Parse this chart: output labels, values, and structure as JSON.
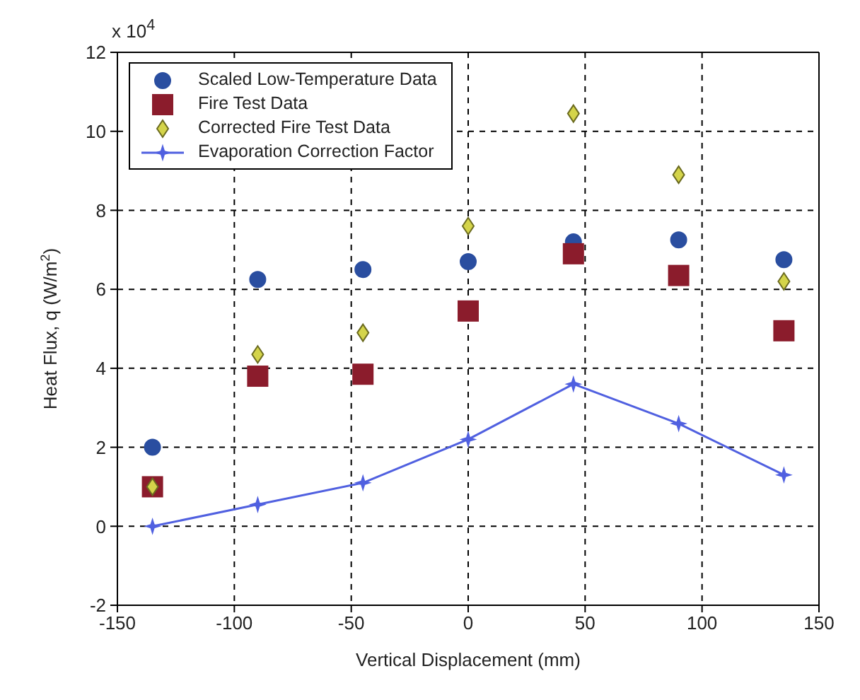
{
  "chart_data": {
    "type": "scatter",
    "xlabel": "Vertical Displacement (mm)",
    "ylabel": "Heat Flux, q (W/m$^{2}$)",
    "annotations": [
      "x 10$^{4}$"
    ],
    "x": [
      -135,
      -90,
      -45,
      0,
      45,
      90,
      135
    ],
    "series": [
      {
        "name": "Scaled Low-Temperature Data",
        "color": "#2a4ea0",
        "marker": "circle",
        "values": [
          2.0,
          6.25,
          6.5,
          6.7,
          7.2,
          7.25,
          6.75
        ]
      },
      {
        "name": "Fire Test Data",
        "color": "#8b1c2c",
        "marker": "square",
        "values": [
          1.0,
          3.8,
          3.85,
          5.45,
          6.9,
          6.35,
          4.95
        ]
      },
      {
        "name": "Corrected Fire Test Data",
        "color": "#d4d44a",
        "marker": "diamond",
        "values": [
          1.0,
          4.35,
          4.9,
          7.6,
          10.45,
          8.9,
          6.2
        ]
      },
      {
        "name": "Evaporation Correction Factor",
        "color": "#5060e0",
        "type": "line",
        "marker": "star",
        "values": [
          0,
          0.55,
          1.1,
          2.2,
          3.6,
          2.6,
          1.3
        ]
      }
    ],
    "xlim": [
      -150,
      150
    ],
    "xticks": [
      -150,
      -100,
      -50,
      0,
      50,
      100,
      150
    ],
    "ylim": [
      -2,
      12
    ],
    "yticks": [
      -2,
      0,
      2,
      4,
      6,
      8,
      10,
      12
    ],
    "grid": true,
    "legend": "top left"
  }
}
